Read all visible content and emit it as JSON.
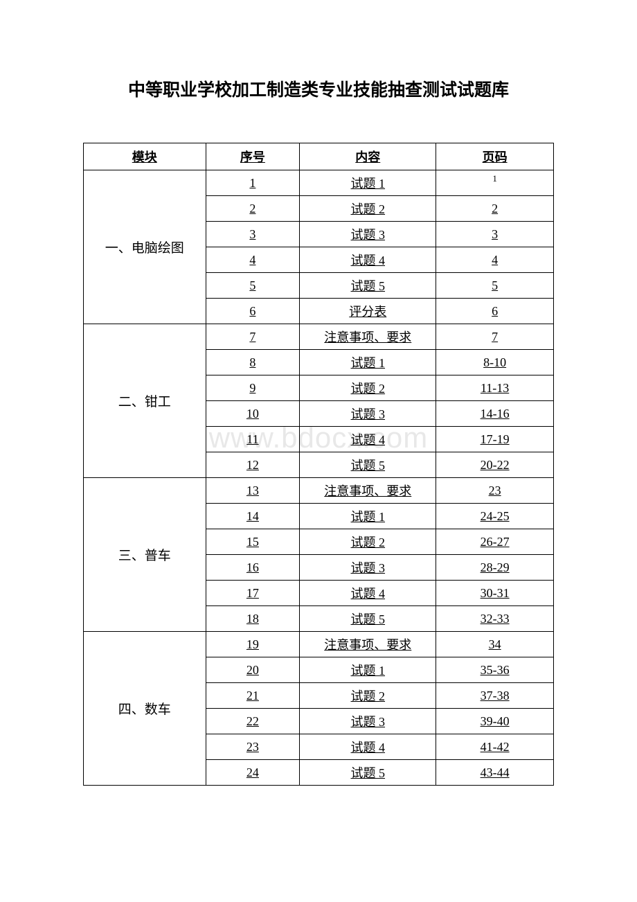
{
  "title": "中等职业学校加工制造类专业技能抽查测试试题库",
  "watermark": "www.bdocx.com",
  "headers": {
    "module": "模块",
    "seq": "序号",
    "content": "内容",
    "page": "页码"
  },
  "sections": [
    {
      "module": "一、电脑绘图",
      "rows": [
        {
          "seq": "1",
          "content": "试题 1",
          "page": "1",
          "smallPage": true
        },
        {
          "seq": "2",
          "content": "试题 2",
          "page": "2"
        },
        {
          "seq": "3",
          "content": "试题 3",
          "page": "3"
        },
        {
          "seq": "4",
          "content": "试题 4",
          "page": "4"
        },
        {
          "seq": "5",
          "content": "试题 5",
          "page": "5"
        },
        {
          "seq": "6",
          "content": "评分表",
          "page": "6"
        }
      ]
    },
    {
      "module": "二、钳工",
      "rows": [
        {
          "seq": "7",
          "content": "注意事项、要求",
          "page": "7"
        },
        {
          "seq": "8",
          "content": "试题 1",
          "page": "8-10"
        },
        {
          "seq": "9",
          "content": "试题 2",
          "page": "11-13"
        },
        {
          "seq": "10",
          "content": "试题 3",
          "page": "14-16"
        },
        {
          "seq": "11",
          "content": "试题 4",
          "page": "17-19"
        },
        {
          "seq": "12",
          "content": "试题 5",
          "page": "20-22"
        }
      ]
    },
    {
      "module": "三、普车",
      "rows": [
        {
          "seq": "13",
          "content": "注意事项、要求",
          "page": "23"
        },
        {
          "seq": "14",
          "content": "试题 1",
          "page": "24-25"
        },
        {
          "seq": "15",
          "content": "试题 2",
          "page": "26-27"
        },
        {
          "seq": "16",
          "content": "试题 3",
          "page": "28-29"
        },
        {
          "seq": "17",
          "content": "试题 4",
          "page": "30-31"
        },
        {
          "seq": "18",
          "content": "试题 5",
          "page": "32-33"
        }
      ]
    },
    {
      "module": "四、数车",
      "rows": [
        {
          "seq": "19",
          "content": "注意事项、要求",
          "page": "34"
        },
        {
          "seq": "20",
          "content": "试题 1",
          "page": "35-36"
        },
        {
          "seq": "21",
          "content": "试题 2",
          "page": "37-38"
        },
        {
          "seq": "22",
          "content": "试题 3",
          "page": "39-40"
        },
        {
          "seq": "23",
          "content": "试题 4",
          "page": "41-42"
        },
        {
          "seq": "24",
          "content": "试题 5",
          "page": "43-44"
        }
      ]
    }
  ]
}
